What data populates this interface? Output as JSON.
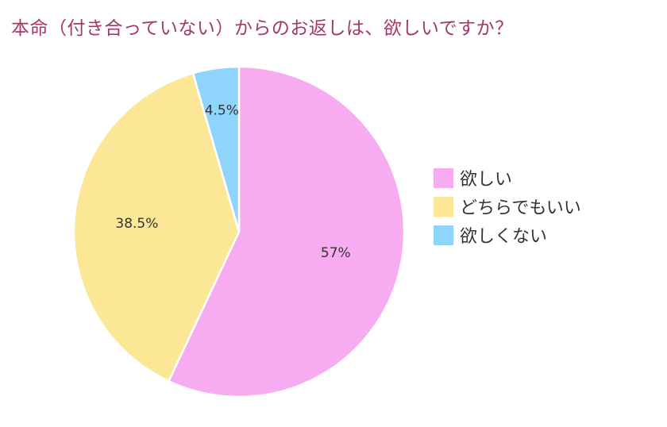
{
  "chart_data": {
    "type": "pie",
    "title": "本命（付き合っていない）からのお返しは、欲しいですか？",
    "categories": [
      "欲しい",
      "どちらでもいい",
      "欲しくない"
    ],
    "values": [
      57,
      38.5,
      4.5
    ],
    "labels": [
      "57%",
      "38.5%",
      "4.5%"
    ],
    "colors": [
      "#f7abf0",
      "#fce796",
      "#8fd5fb"
    ],
    "legend_position": "right"
  }
}
